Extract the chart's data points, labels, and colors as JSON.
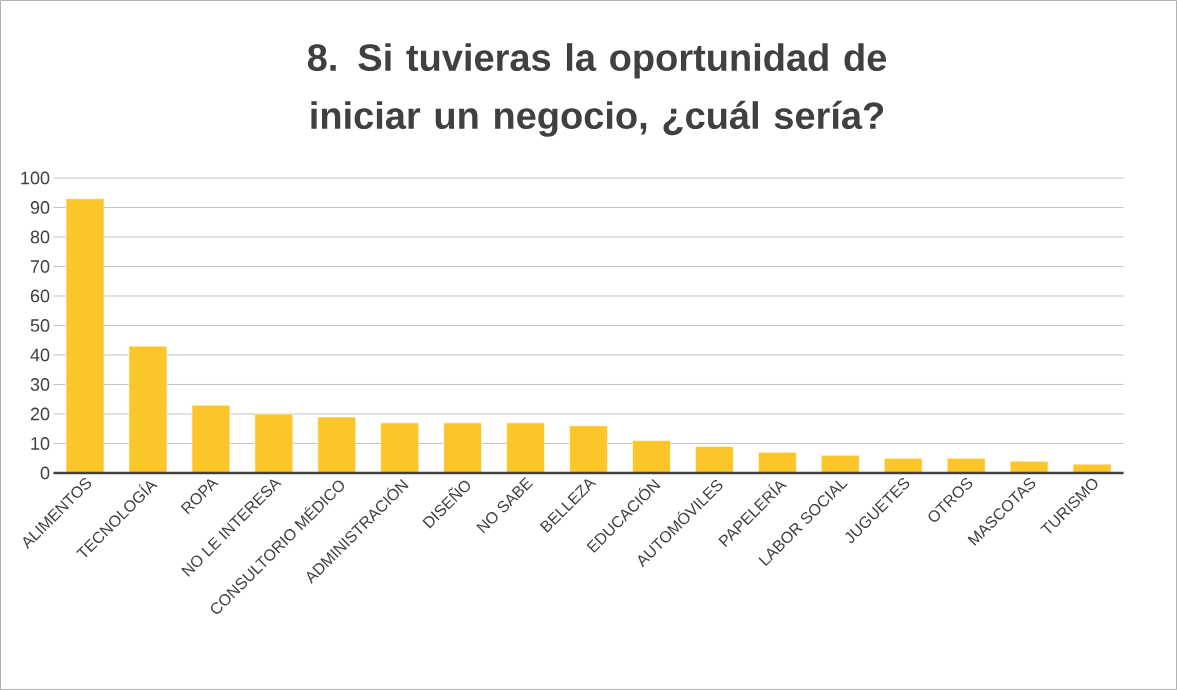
{
  "chart_data": {
    "type": "bar",
    "title": "8. Si tuvieras la oportunidad de iniciar un negocio, ¿cuál sería?",
    "categories": [
      "ALIMENTOS",
      "TECNOLOGÍA",
      "ROPA",
      "NO LE INTERESA",
      "CONSULTORIO MÉDICO",
      "ADMINISTRACIÓN",
      "DISEÑO",
      "NO SABE",
      "BELLEZA",
      "EDUCACIÓN",
      "AUTOMÓVILES",
      "PAPELERÍA",
      "LABOR SOCIAL",
      "JUGUETES",
      "OTROS",
      "MASCOTAS",
      "TURISMO"
    ],
    "values": [
      93,
      43,
      23,
      20,
      19,
      17,
      17,
      17,
      16,
      11,
      9,
      7,
      6,
      5,
      5,
      4,
      3
    ],
    "color": "#fcc62b",
    "ylim": [
      0,
      100
    ],
    "yticks": [
      0,
      10,
      20,
      30,
      40,
      50,
      60,
      70,
      80,
      90,
      100
    ],
    "grid": "y"
  }
}
